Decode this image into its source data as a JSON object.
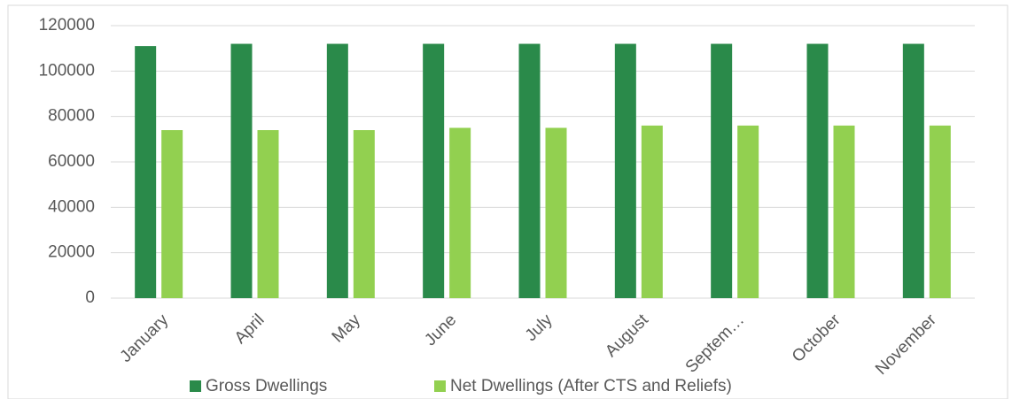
{
  "chart_data": {
    "type": "bar",
    "categories": [
      "January",
      "April",
      "May",
      "June",
      "July",
      "August",
      "Septem…",
      "October",
      "November"
    ],
    "series": [
      {
        "name": "Gross Dwellings",
        "color": "#2a8a4a",
        "values": [
          111000,
          112000,
          112000,
          112000,
          112000,
          112000,
          112000,
          112000,
          112000
        ]
      },
      {
        "name": "Net Dwellings (After CTS and Reliefs)",
        "color": "#92d050",
        "values": [
          74000,
          74000,
          74000,
          75000,
          75000,
          76000,
          76000,
          76000,
          76000
        ]
      }
    ],
    "ylim": [
      0,
      120000
    ],
    "yticks": [
      0,
      20000,
      40000,
      60000,
      80000,
      100000,
      120000
    ],
    "grid": true,
    "legend": "bottom"
  }
}
